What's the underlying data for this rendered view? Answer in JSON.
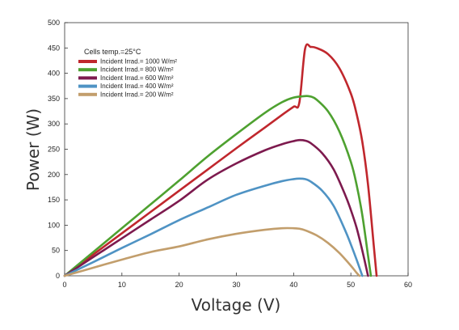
{
  "chart_data": {
    "type": "line",
    "xlabel": "Voltage (V)",
    "ylabel": "Power (W)",
    "xlim": [
      0,
      60
    ],
    "ylim": [
      0,
      500
    ],
    "xticks": [
      0,
      10,
      20,
      30,
      40,
      50,
      60
    ],
    "yticks": [
      0,
      50,
      100,
      150,
      200,
      250,
      300,
      350,
      400,
      450,
      500
    ],
    "grid": false,
    "legend_position": "top-left",
    "legend_title": "Cells temp.=25°C",
    "series": [
      {
        "name": "Incident Irrad.= 1000 W/m²",
        "color": "#c0272d",
        "x": [
          0,
          5,
          10,
          15,
          20,
          25,
          30,
          35,
          38,
          40,
          41,
          42,
          43,
          44,
          46,
          48,
          50,
          51,
          52,
          53,
          54,
          54.5
        ],
        "y": [
          0,
          42,
          84,
          126,
          168,
          210,
          252,
          293,
          318,
          334,
          342,
          448,
          452,
          450,
          438,
          410,
          360,
          320,
          265,
          180,
          60,
          0
        ]
      },
      {
        "name": "Incident Irrad.= 800 W/m²",
        "color": "#4ea130",
        "x": [
          0,
          5,
          10,
          15,
          20,
          25,
          30,
          35,
          38,
          40,
          42,
          43,
          44,
          46,
          48,
          50,
          51,
          52,
          53,
          53.5
        ],
        "y": [
          0,
          47,
          94,
          141,
          188,
          236,
          280,
          322,
          343,
          352,
          355,
          354,
          348,
          325,
          285,
          225,
          180,
          120,
          40,
          0
        ]
      },
      {
        "name": "Incident Irrad.= 600 W/m²",
        "color": "#7d1a4e",
        "x": [
          0,
          5,
          10,
          15,
          20,
          25,
          30,
          35,
          38,
          40,
          41,
          42,
          43,
          45,
          47,
          49,
          50,
          51,
          52,
          53
        ],
        "y": [
          0,
          37,
          74,
          111,
          148,
          190,
          222,
          248,
          260,
          266,
          268,
          267,
          262,
          242,
          210,
          160,
          130,
          95,
          50,
          0
        ]
      },
      {
        "name": "Incident Irrad.= 400 W/m²",
        "color": "#4f93c4",
        "x": [
          0,
          5,
          10,
          15,
          20,
          25,
          30,
          35,
          38,
          40,
          41,
          42,
          43,
          45,
          47,
          49,
          50,
          51,
          52
        ],
        "y": [
          0,
          27,
          55,
          82,
          110,
          135,
          160,
          178,
          187,
          191,
          192,
          191,
          186,
          168,
          138,
          90,
          62,
          32,
          0
        ]
      },
      {
        "name": "Incident Irrad.= 200 W/m²",
        "color": "#c29e6c",
        "x": [
          0,
          5,
          10,
          15,
          20,
          25,
          30,
          35,
          38,
          40,
          41,
          42,
          44,
          46,
          48,
          50,
          51,
          51.5
        ],
        "y": [
          0,
          16,
          32,
          47,
          58,
          72,
          83,
          91,
          94,
          94,
          93,
          90,
          80,
          65,
          45,
          20,
          6,
          0
        ]
      }
    ]
  }
}
